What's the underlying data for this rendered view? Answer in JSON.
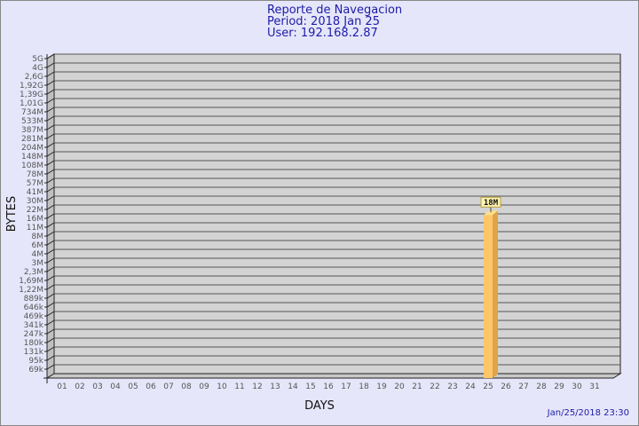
{
  "header": {
    "title": "Reporte de Navegacion",
    "period": "Period: 2018 Jan 25",
    "user": "User: 192.168.2.87"
  },
  "timestamp": "Jan/25/2018 23:30",
  "colors": {
    "background": "#e6e6fa",
    "plot": "#d3d3d3",
    "bar": "#ffc669",
    "bar_side": "#dea449",
    "title": "#1c1ca8"
  },
  "chart_data": {
    "type": "bar",
    "xlabel": "DAYS",
    "ylabel": "BYTES",
    "y_scale": "log",
    "grid": true,
    "y_ticks": [
      "5G",
      "4G",
      "2,6G",
      "1,92G",
      "1,39G",
      "1,01G",
      "734M",
      "533M",
      "387M",
      "281M",
      "204M",
      "148M",
      "108M",
      "78M",
      "57M",
      "41M",
      "30M",
      "22M",
      "16M",
      "11M",
      "8M",
      "6M",
      "4M",
      "3M",
      "2,3M",
      "1,69M",
      "1,22M",
      "889k",
      "646k",
      "469k",
      "341k",
      "247k",
      "180k",
      "131k",
      "95k",
      "69k"
    ],
    "categories": [
      "01",
      "02",
      "03",
      "04",
      "05",
      "06",
      "07",
      "08",
      "09",
      "10",
      "11",
      "12",
      "13",
      "14",
      "15",
      "16",
      "17",
      "18",
      "19",
      "20",
      "21",
      "22",
      "23",
      "24",
      "25",
      "26",
      "27",
      "28",
      "29",
      "30",
      "31"
    ],
    "bars": [
      {
        "day": "25",
        "value": "18M",
        "label": "18M"
      }
    ]
  }
}
